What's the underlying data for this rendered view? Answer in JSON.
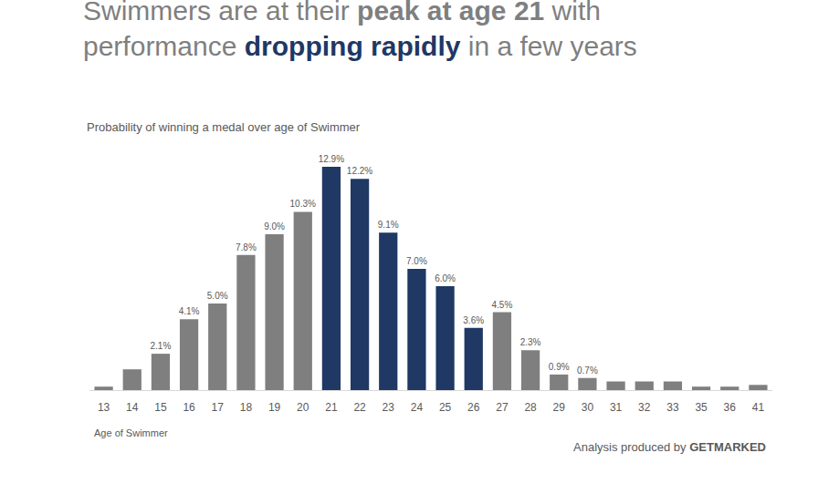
{
  "chart_data": {
    "type": "bar",
    "title": "Swimmers are at their peak at age 21 with performance dropping rapidly in a few years",
    "subtitle": "Probability of winning a medal over age of Swimmer",
    "x_label": "Age of Swimmer",
    "annotations": [
      "Analysis produced by GETMARKED"
    ],
    "categories": [
      "13",
      "14",
      "15",
      "16",
      "17",
      "18",
      "19",
      "20",
      "21",
      "22",
      "23",
      "24",
      "25",
      "26",
      "27",
      "28",
      "29",
      "30",
      "31",
      "32",
      "33",
      "35",
      "36",
      "41"
    ],
    "values": [
      0.2,
      1.2,
      2.1,
      4.1,
      5.0,
      7.8,
      9.0,
      10.3,
      12.9,
      12.2,
      9.1,
      7.0,
      6.0,
      3.6,
      4.5,
      2.3,
      0.9,
      0.7,
      0.5,
      0.5,
      0.5,
      0.2,
      0.2,
      0.3
    ],
    "value_labels": [
      null,
      null,
      "2.1%",
      "4.1%",
      "5.0%",
      "7.8%",
      "9.0%",
      "10.3%",
      "12.9%",
      "12.2%",
      "9.1%",
      "7.0%",
      "6.0%",
      "3.6%",
      "4.5%",
      "2.3%",
      "0.9%",
      "0.7%",
      null,
      null,
      null,
      null,
      null,
      null
    ],
    "colors": [
      "#7f7f7f",
      "#7f7f7f",
      "#7f7f7f",
      "#7f7f7f",
      "#7f7f7f",
      "#7f7f7f",
      "#7f7f7f",
      "#7f7f7f",
      "#1f3864",
      "#1f3864",
      "#1f3864",
      "#1f3864",
      "#1f3864",
      "#1f3864",
      "#7f7f7f",
      "#7f7f7f",
      "#7f7f7f",
      "#7f7f7f",
      "#7f7f7f",
      "#7f7f7f",
      "#7f7f7f",
      "#7f7f7f",
      "#7f7f7f",
      "#7f7f7f"
    ],
    "ylim": [
      0,
      12.9
    ],
    "data_labels": true,
    "tick_labels": "x",
    "grid": false
  }
}
